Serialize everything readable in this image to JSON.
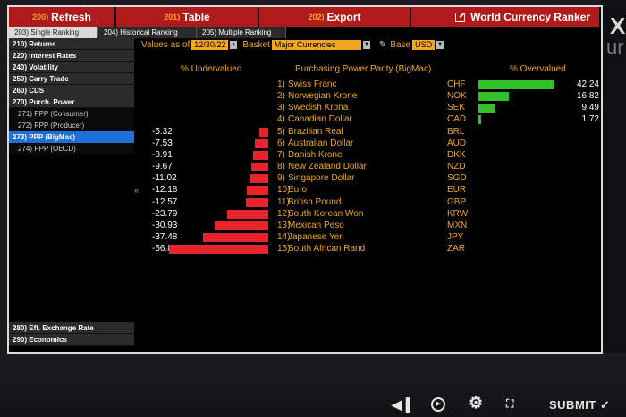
{
  "toolbar": {
    "refresh": {
      "code": "200)",
      "label": "Refresh"
    },
    "table": {
      "code": "201)",
      "label": "Table"
    },
    "export": {
      "code": "202)",
      "label": "Export"
    },
    "ranker": {
      "label": "World Currency Ranker"
    }
  },
  "tabs": [
    {
      "label": "203) Single Ranking",
      "active": true
    },
    {
      "label": "204) Historical Ranking",
      "active": false
    },
    {
      "label": "205) Multiple Ranking",
      "active": false
    }
  ],
  "sidebar": {
    "items": [
      {
        "label": "210) Returns",
        "type": "header"
      },
      {
        "label": "220) Interest Rates",
        "type": "header"
      },
      {
        "label": "240) Volatility",
        "type": "header"
      },
      {
        "label": "250) Carry Trade",
        "type": "header"
      },
      {
        "label": "260) CDS",
        "type": "header"
      },
      {
        "label": "270) Purch. Power",
        "type": "header"
      },
      {
        "label": "271) PPP (Consumer)",
        "type": "sub"
      },
      {
        "label": "272) PPP (Producer)",
        "type": "sub"
      },
      {
        "label": "273) PPP (BigMac)",
        "type": "selected"
      },
      {
        "label": "274) PPP (OECD)",
        "type": "sub"
      }
    ],
    "bottom_items": [
      {
        "label": "280) Eff. Exchange Rate"
      },
      {
        "label": "290) Economics"
      }
    ]
  },
  "controls": {
    "values_as_of_label": "Values as of",
    "date": "12/30/22",
    "basket_label": "Basket",
    "basket": "Major Currencies",
    "base_label": "Base",
    "base": "USD"
  },
  "headers": {
    "undervalued": "% Undervalued",
    "ppp": "Purchasing Power Parity (BigMac)",
    "overvalued": "% Overvalued"
  },
  "rows": [
    {
      "rank": "1)",
      "name": "Swiss Franc",
      "code": "CHF",
      "value": 42.24,
      "display": "42.24"
    },
    {
      "rank": "2)",
      "name": "Norwegian Krone",
      "code": "NOK",
      "value": 16.82,
      "display": "16.82"
    },
    {
      "rank": "3)",
      "name": "Swedish Krona",
      "code": "SEK",
      "value": 9.49,
      "display": "9.49"
    },
    {
      "rank": "4)",
      "name": "Canadian Dollar",
      "code": "CAD",
      "value": 1.72,
      "display": "1.72"
    },
    {
      "rank": "5)",
      "name": "Brazilian Real",
      "code": "BRL",
      "value": -5.32,
      "display": "-5.32"
    },
    {
      "rank": "6)",
      "name": "Australian Dollar",
      "code": "AUD",
      "value": -7.53,
      "display": "-7.53"
    },
    {
      "rank": "7)",
      "name": "Danish Krone",
      "code": "DKK",
      "value": -8.91,
      "display": "-8.91"
    },
    {
      "rank": "8)",
      "name": "New Zealand Dollar",
      "code": "NZD",
      "value": -9.67,
      "display": "-9.67"
    },
    {
      "rank": "9)",
      "name": "Singapore Dollar",
      "code": "SGD",
      "value": -11.02,
      "display": "-11.02"
    },
    {
      "rank": "10)",
      "name": "Euro",
      "code": "EUR",
      "value": -12.18,
      "display": "-12.18"
    },
    {
      "rank": "11)",
      "name": "British Pound",
      "code": "GBP",
      "value": -12.57,
      "display": "-12.57"
    },
    {
      "rank": "12)",
      "name": "South Korean Won",
      "code": "KRW",
      "value": -23.79,
      "display": "-23.79"
    },
    {
      "rank": "13)",
      "name": "Mexican Peso",
      "code": "MXN",
      "value": -30.93,
      "display": "-30.93"
    },
    {
      "rank": "14)",
      "name": "Japanese Yen",
      "code": "JPY",
      "value": -37.48,
      "display": "-37.48"
    },
    {
      "rank": "15)",
      "name": "South African Rand",
      "code": "ZAR",
      "value": -56.83,
      "display": "-56.83"
    }
  ],
  "bottom_controls": {
    "submit": "SUBMIT",
    "icons": [
      "volume-icon",
      "play-icon",
      "gear-icon",
      "fullscreen-icon"
    ]
  },
  "background_letters": [
    "X",
    "ur"
  ],
  "colors": {
    "accent_orange": "#f2a623",
    "bar_red": "#e8232a",
    "bar_green": "#32c12b",
    "header_red": "#b01a1a",
    "selected_blue": "#1f6fd6"
  }
}
